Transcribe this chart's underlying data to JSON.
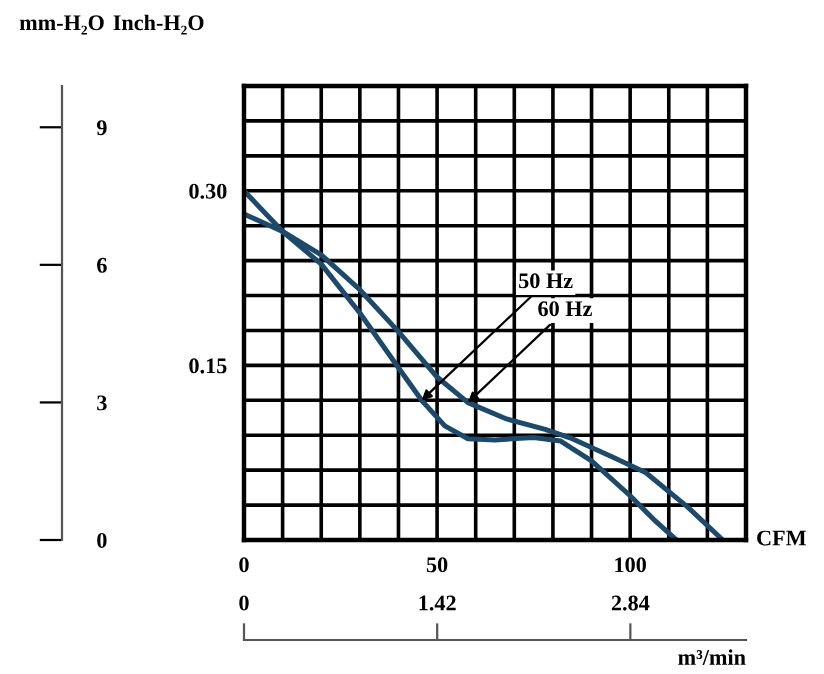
{
  "chart_data": {
    "type": "line",
    "ylabel": "Inch-H₂O",
    "y2label": "mm-H₂O",
    "xlabel": "CFM",
    "x2label": "m³/min",
    "xlim": [
      0,
      130
    ],
    "xticks": [
      0,
      {
        "value": 10,
        "label": null
      },
      {
        "value": 20,
        "label": null
      },
      {
        "value": 30,
        "label": null
      },
      {
        "value": 40,
        "label": null
      },
      50,
      {
        "value": 60,
        "label": null
      },
      {
        "value": 70,
        "label": null
      },
      {
        "value": 80,
        "label": null
      },
      {
        "value": 90,
        "label": null
      },
      100,
      {
        "value": 110,
        "label": null
      },
      {
        "value": 120,
        "label": null
      },
      {
        "value": 130,
        "label": null
      }
    ],
    "ylim": [
      0,
      0.39
    ],
    "yticks": [
      {
        "value": 0,
        "label": null
      },
      {
        "value": 0.03,
        "label": null
      },
      {
        "value": 0.06,
        "label": null
      },
      {
        "value": 0.09,
        "label": null
      },
      {
        "value": 0.12,
        "label": null
      },
      {
        "value": 0.15,
        "label": "0.15"
      },
      {
        "value": 0.18,
        "label": null
      },
      {
        "value": 0.21,
        "label": null
      },
      {
        "value": 0.24,
        "label": null
      },
      {
        "value": 0.27,
        "label": null
      },
      {
        "value": 0.3,
        "label": "0.30"
      },
      {
        "value": 0.33,
        "label": null
      },
      {
        "value": 0.36,
        "label": null
      },
      {
        "value": 0.39,
        "label": null
      }
    ],
    "y2lim": [
      0,
      9.9
    ],
    "y2ticks": [
      0,
      3,
      6,
      9
    ],
    "x2lim": [
      0,
      3.69
    ],
    "x2ticks": [
      0,
      1.42,
      2.84
    ],
    "grid": true,
    "legend": false,
    "marker": "none",
    "line_style": "solid",
    "series": [
      {
        "color": "#1d4a6b",
        "x": [
          0,
          10,
          20,
          30,
          40,
          46,
          52,
          58,
          65,
          75,
          82,
          90,
          100,
          106,
          112
        ],
        "values": [
          0.3,
          0.265,
          0.237,
          0.195,
          0.148,
          0.12,
          0.098,
          0.087,
          0.086,
          0.088,
          0.085,
          0.068,
          0.038,
          0.018,
          0
        ]
      },
      {
        "color": "#1d4a6b",
        "x": [
          0,
          10,
          20,
          30,
          40,
          50,
          58,
          68,
          78,
          85,
          95,
          104,
          115,
          124
        ],
        "values": [
          0.28,
          0.265,
          0.245,
          0.215,
          0.179,
          0.14,
          0.118,
          0.104,
          0.095,
          0.087,
          0.072,
          0.058,
          0.028,
          0
        ]
      }
    ],
    "annotations": [
      {
        "text": "50 Hz",
        "x": 46,
        "y": 0.12
      },
      {
        "text": "60 Hz",
        "x": 58,
        "y": 0.118
      }
    ]
  }
}
